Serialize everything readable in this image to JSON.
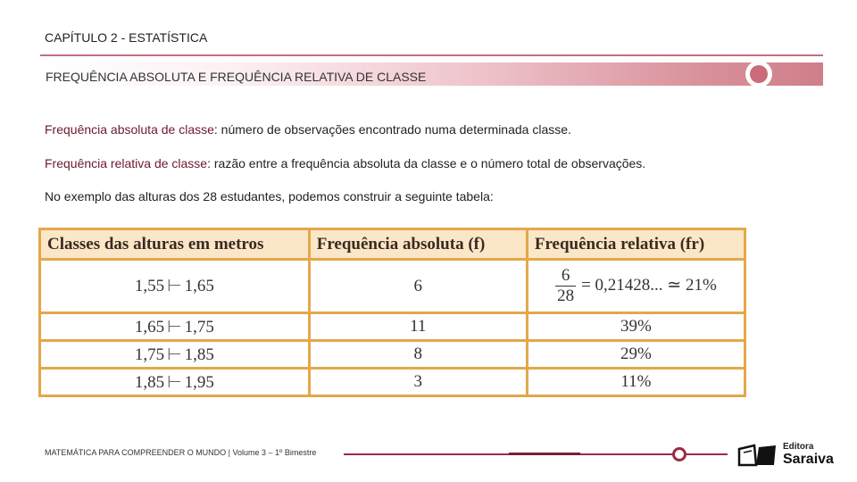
{
  "header": {
    "chapter": "CAPÍTULO 2 - ESTATÍSTICA",
    "section": "FREQUÊNCIA ABSOLUTA E FREQUÊNCIA RELATIVA DE CLASSE"
  },
  "body": {
    "p1_term": "Frequência absoluta de classe",
    "p1_text": ": número de observações encontrado numa determinada classe.",
    "p2_term": "Frequência relativa de classe",
    "p2_text": ": razão entre a frequência absoluta da classe e o número total de observações.",
    "p3_text": "No exemplo das alturas dos 28 estudantes, podemos construir a seguinte tabela:"
  },
  "table": {
    "headers": [
      "Classes das alturas em metros",
      "Frequência absoluta (f)",
      "Frequência relativa (fr)"
    ],
    "arrow": "⊢",
    "rows": [
      {
        "from": "1,55",
        "to": "1,65",
        "f": "6",
        "fr_num": "6",
        "fr_den": "28",
        "fr_rest": "= 0,21428... ≃ 21%"
      },
      {
        "from": "1,65",
        "to": "1,75",
        "f": "11",
        "fr": "39%"
      },
      {
        "from": "1,75",
        "to": "1,85",
        "f": "8",
        "fr": "29%"
      },
      {
        "from": "1,85",
        "to": "1,95",
        "f": "3",
        "fr": "11%"
      }
    ]
  },
  "footer": {
    "text": "MATEMÁTICA PARA COMPREENDER O MUNDO | Volume 3 – 1º Bimestre",
    "logo_small": "Editora",
    "logo_big": "Saraiva"
  },
  "colors": {
    "accent": "#9c2a45",
    "table_border": "#e3a84a",
    "table_header": "#fbe7c8"
  }
}
